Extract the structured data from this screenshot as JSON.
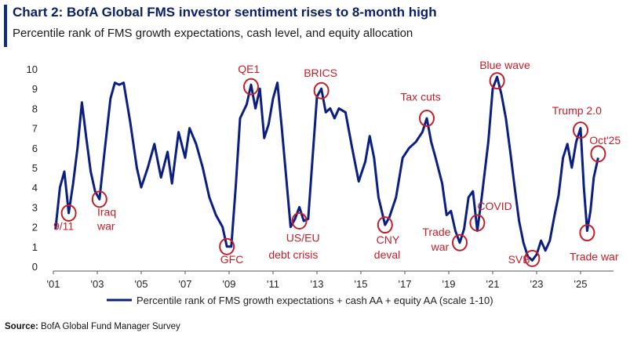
{
  "header": {
    "title": "Chart 2: BofA Global FMS investor sentiment rises to 8-month high",
    "subtitle": "Percentile rank of FMS growth expectations, cash level, and equity allocation"
  },
  "source": {
    "label": "Source:",
    "text": "BofA Global Fund Manager Survey"
  },
  "colors": {
    "line": "#0b1f80",
    "annotation": "#c0202b",
    "accent": "#0b2a8a"
  },
  "chart_data": {
    "type": "line",
    "title": "Chart 2: BofA Global FMS investor sentiment rises to 8-month high",
    "subtitle": "Percentile rank of FMS growth expectations, cash level, and equity allocation",
    "xlabel": "",
    "ylabel": "",
    "xlim": [
      2001,
      2026.5
    ],
    "ylim": [
      0,
      10
    ],
    "grid": false,
    "legend_position": "bottom",
    "x_ticks": [
      {
        "x": 2001,
        "label": "'01"
      },
      {
        "x": 2003,
        "label": "'03"
      },
      {
        "x": 2005,
        "label": "'05"
      },
      {
        "x": 2007,
        "label": "'07"
      },
      {
        "x": 2009,
        "label": "'09"
      },
      {
        "x": 2011,
        "label": "'11"
      },
      {
        "x": 2013,
        "label": "'13"
      },
      {
        "x": 2015,
        "label": "'15"
      },
      {
        "x": 2017,
        "label": "'17"
      },
      {
        "x": 2019,
        "label": "'19"
      },
      {
        "x": 2021,
        "label": "'21"
      },
      {
        "x": 2023,
        "label": "'23"
      },
      {
        "x": 2025,
        "label": "'25"
      }
    ],
    "y_ticks": [
      {
        "y": 0,
        "label": "0"
      },
      {
        "y": 1,
        "label": "1"
      },
      {
        "y": 2,
        "label": "2"
      },
      {
        "y": 3,
        "label": "3"
      },
      {
        "y": 4,
        "label": "4"
      },
      {
        "y": 5,
        "label": "5"
      },
      {
        "y": 6,
        "label": "6"
      },
      {
        "y": 7,
        "label": "7"
      },
      {
        "y": 8,
        "label": "8"
      },
      {
        "y": 9,
        "label": "9"
      },
      {
        "y": 10,
        "label": "10"
      }
    ],
    "series": [
      {
        "name": "Percentile rank of FMS growth expectations + cash AA + equity AA (scale 1-10)",
        "points": [
          [
            2001.1,
            1.9
          ],
          [
            2001.3,
            4.0
          ],
          [
            2001.5,
            4.8
          ],
          [
            2001.7,
            2.7
          ],
          [
            2001.9,
            4.2
          ],
          [
            2002.1,
            6.0
          ],
          [
            2002.3,
            8.3
          ],
          [
            2002.5,
            6.5
          ],
          [
            2002.7,
            4.8
          ],
          [
            2002.9,
            3.8
          ],
          [
            2003.1,
            3.4
          ],
          [
            2003.3,
            5.5
          ],
          [
            2003.6,
            8.5
          ],
          [
            2003.8,
            9.3
          ],
          [
            2004.0,
            9.2
          ],
          [
            2004.2,
            9.3
          ],
          [
            2004.5,
            7.3
          ],
          [
            2004.8,
            5.0
          ],
          [
            2005.0,
            4.0
          ],
          [
            2005.3,
            5.0
          ],
          [
            2005.6,
            6.2
          ],
          [
            2005.9,
            4.5
          ],
          [
            2006.2,
            5.8
          ],
          [
            2006.4,
            4.2
          ],
          [
            2006.7,
            6.8
          ],
          [
            2007.0,
            5.5
          ],
          [
            2007.2,
            7.0
          ],
          [
            2007.5,
            6.2
          ],
          [
            2007.8,
            5.0
          ],
          [
            2008.1,
            3.5
          ],
          [
            2008.4,
            2.6
          ],
          [
            2008.7,
            2.0
          ],
          [
            2008.9,
            1.0
          ],
          [
            2009.1,
            1.0
          ],
          [
            2009.3,
            4.0
          ],
          [
            2009.5,
            7.5
          ],
          [
            2009.8,
            8.2
          ],
          [
            2010.0,
            9.2
          ],
          [
            2010.2,
            8.0
          ],
          [
            2010.4,
            9.0
          ],
          [
            2010.6,
            6.5
          ],
          [
            2010.8,
            7.2
          ],
          [
            2011.0,
            8.5
          ],
          [
            2011.2,
            9.3
          ],
          [
            2011.4,
            7.0
          ],
          [
            2011.6,
            4.5
          ],
          [
            2011.8,
            2.0
          ],
          [
            2012.0,
            2.4
          ],
          [
            2012.2,
            3.0
          ],
          [
            2012.4,
            2.3
          ],
          [
            2012.6,
            2.4
          ],
          [
            2012.8,
            5.5
          ],
          [
            2013.0,
            8.6
          ],
          [
            2013.2,
            9.0
          ],
          [
            2013.4,
            7.8
          ],
          [
            2013.6,
            8.0
          ],
          [
            2013.8,
            7.5
          ],
          [
            2014.0,
            8.0
          ],
          [
            2014.3,
            7.8
          ],
          [
            2014.6,
            6.0
          ],
          [
            2014.9,
            4.3
          ],
          [
            2015.2,
            5.3
          ],
          [
            2015.4,
            6.6
          ],
          [
            2015.6,
            5.5
          ],
          [
            2015.8,
            3.5
          ],
          [
            2016.1,
            2.1
          ],
          [
            2016.3,
            2.5
          ],
          [
            2016.6,
            3.5
          ],
          [
            2016.9,
            5.5
          ],
          [
            2017.2,
            6.0
          ],
          [
            2017.5,
            6.3
          ],
          [
            2017.8,
            6.8
          ],
          [
            2018.0,
            7.5
          ],
          [
            2018.2,
            6.3
          ],
          [
            2018.4,
            5.5
          ],
          [
            2018.7,
            4.2
          ],
          [
            2018.9,
            2.6
          ],
          [
            2019.1,
            2.8
          ],
          [
            2019.3,
            1.8
          ],
          [
            2019.5,
            1.2
          ],
          [
            2019.7,
            1.9
          ],
          [
            2019.9,
            3.5
          ],
          [
            2020.1,
            3.8
          ],
          [
            2020.3,
            1.8
          ],
          [
            2020.5,
            3.5
          ],
          [
            2020.8,
            6.3
          ],
          [
            2021.0,
            9.0
          ],
          [
            2021.2,
            9.6
          ],
          [
            2021.4,
            8.7
          ],
          [
            2021.6,
            7.5
          ],
          [
            2021.8,
            5.8
          ],
          [
            2022.0,
            4.0
          ],
          [
            2022.2,
            2.3
          ],
          [
            2022.4,
            1.2
          ],
          [
            2022.6,
            0.5
          ],
          [
            2022.8,
            0.3
          ],
          [
            2023.0,
            0.6
          ],
          [
            2023.2,
            1.3
          ],
          [
            2023.4,
            0.8
          ],
          [
            2023.6,
            1.3
          ],
          [
            2023.8,
            2.5
          ],
          [
            2024.0,
            3.6
          ],
          [
            2024.2,
            5.5
          ],
          [
            2024.4,
            6.2
          ],
          [
            2024.6,
            5.0
          ],
          [
            2024.8,
            6.3
          ],
          [
            2025.0,
            7.0
          ],
          [
            2025.15,
            4.0
          ],
          [
            2025.3,
            1.8
          ],
          [
            2025.45,
            2.8
          ],
          [
            2025.6,
            4.5
          ],
          [
            2025.8,
            5.5
          ]
        ]
      }
    ],
    "annotations": [
      {
        "text": "9/11",
        "circle": [
          2001.7,
          2.7
        ],
        "label_at": [
          2001.0,
          1.85
        ]
      },
      {
        "text": "Iraq",
        "circle": [
          2003.1,
          3.4
        ],
        "label_at": [
          2003.0,
          2.55
        ]
      },
      {
        "text": "war",
        "circle": null,
        "label_at": [
          2003.0,
          1.85
        ]
      },
      {
        "text": "QE1",
        "circle": [
          2010.0,
          9.1
        ],
        "label_at": [
          2009.4,
          9.8
        ]
      },
      {
        "text": "GFC",
        "circle": [
          2008.9,
          1.0
        ],
        "label_at": [
          2008.6,
          0.15
        ]
      },
      {
        "text": "BRICS",
        "circle": [
          2013.2,
          8.9
        ],
        "label_at": [
          2012.4,
          9.6
        ]
      },
      {
        "text": "US/EU",
        "circle": [
          2012.2,
          2.3
        ],
        "label_at": [
          2011.6,
          1.25
        ]
      },
      {
        "text": "debt crisis",
        "circle": null,
        "label_at": [
          2010.8,
          0.4
        ]
      },
      {
        "text": "Tax cuts",
        "circle": [
          2018.0,
          7.5
        ],
        "label_at": [
          2016.8,
          8.4
        ]
      },
      {
        "text": "CNY",
        "circle": [
          2016.1,
          2.1
        ],
        "label_at": [
          2015.7,
          1.15
        ]
      },
      {
        "text": "deval",
        "circle": null,
        "label_at": [
          2015.6,
          0.4
        ]
      },
      {
        "text": "Trade",
        "circle": [
          2019.5,
          1.2
        ],
        "label_at": [
          2017.8,
          1.55
        ]
      },
      {
        "text": "war",
        "circle": null,
        "label_at": [
          2018.2,
          0.8
        ]
      },
      {
        "text": "COVID",
        "circle": [
          2020.3,
          2.2
        ],
        "label_at": [
          2020.3,
          2.85
        ]
      },
      {
        "text": "Blue wave",
        "circle": [
          2021.2,
          9.4
        ],
        "label_at": [
          2020.4,
          10.0
        ]
      },
      {
        "text": "SVB",
        "circle": [
          2022.8,
          0.4
        ],
        "label_at": [
          2021.7,
          0.15
        ]
      },
      {
        "text": "Trump 2.0",
        "circle": [
          2025.0,
          6.9
        ],
        "label_at": [
          2023.7,
          7.7
        ]
      },
      {
        "text": "Oct'25",
        "circle": [
          2025.8,
          5.7
        ],
        "label_at": [
          2025.4,
          6.2
        ]
      },
      {
        "text": "Trade war",
        "circle": [
          2025.3,
          1.7
        ],
        "label_at": [
          2024.5,
          0.3
        ]
      }
    ]
  }
}
